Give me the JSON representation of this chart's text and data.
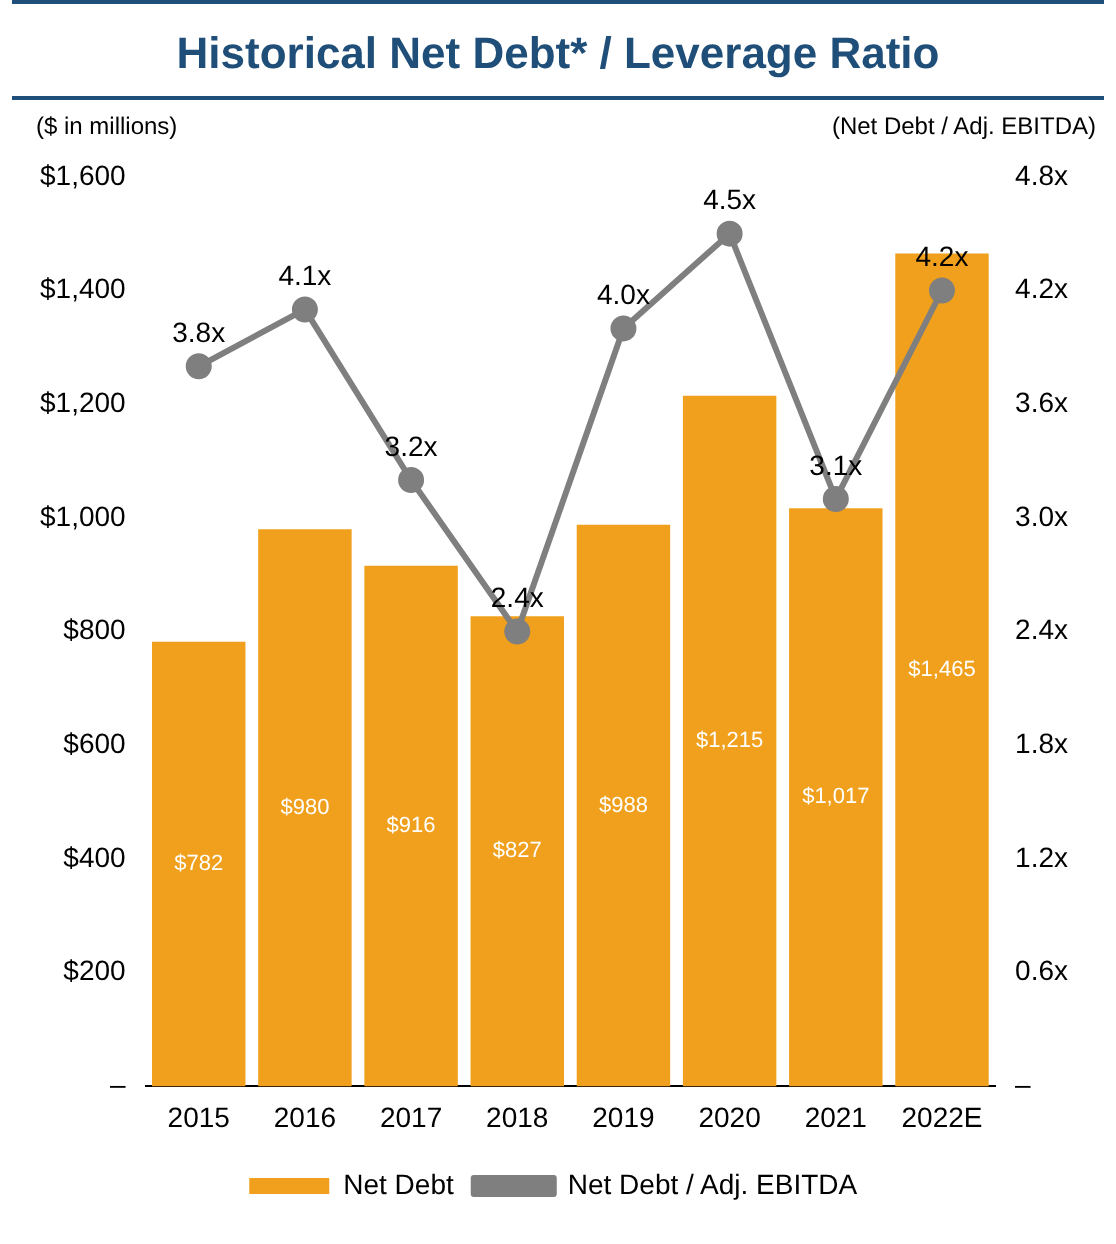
{
  "chart_data": {
    "type": "bar",
    "title": "Historical Net Debt* / Leverage Ratio",
    "ylabel": "($ in millions)",
    "y2label": "(Net Debt / Adj. EBITDA)",
    "categories": [
      "2015",
      "2016",
      "2017",
      "2018",
      "2019",
      "2020",
      "2021",
      "2022E"
    ],
    "series": [
      {
        "name": "Net Debt",
        "color": "#f0a01c",
        "values": [
          782,
          980,
          916,
          827,
          988,
          1215,
          1017,
          1465
        ],
        "value_labels": [
          "$782",
          "$980",
          "$916",
          "$827",
          "$988",
          "$1,215",
          "$1,017",
          "$1,465"
        ]
      },
      {
        "name": "Net Debt / Adj. EBITDA",
        "type": "line",
        "axis": "y2",
        "color": "#7f7f7f",
        "marker": "circle",
        "values": [
          3.8,
          4.1,
          3.2,
          2.4,
          4.0,
          4.5,
          3.1,
          4.2
        ],
        "value_labels": [
          "3.8x",
          "4.1x",
          "3.2x",
          "2.4x",
          "4.0x",
          "4.5x",
          "3.1x",
          "4.2x"
        ]
      }
    ],
    "ylim": [
      0,
      1600
    ],
    "yticks": [
      {
        "value": 0,
        "label": "–"
      },
      {
        "value": 200,
        "label": "$200"
      },
      {
        "value": 400,
        "label": "$400"
      },
      {
        "value": 600,
        "label": "$600"
      },
      {
        "value": 800,
        "label": "$800"
      },
      {
        "value": 1000,
        "label": "$1,000"
      },
      {
        "value": 1200,
        "label": "$1,200"
      },
      {
        "value": 1400,
        "label": "$1,400"
      },
      {
        "value": 1600,
        "label": "$1,600"
      }
    ],
    "y2lim": [
      0,
      4.8
    ],
    "y2ticks": [
      {
        "value": 0,
        "label": "–"
      },
      {
        "value": 0.6,
        "label": "0.6x"
      },
      {
        "value": 1.2,
        "label": "1.2x"
      },
      {
        "value": 1.8,
        "label": "1.8x"
      },
      {
        "value": 2.4,
        "label": "2.4x"
      },
      {
        "value": 3.0,
        "label": "3.0x"
      },
      {
        "value": 3.6,
        "label": "3.6x"
      },
      {
        "value": 4.2,
        "label": "4.2x"
      },
      {
        "value": 4.8,
        "label": "4.8x"
      }
    ],
    "grid": false,
    "legend": "bottom"
  }
}
